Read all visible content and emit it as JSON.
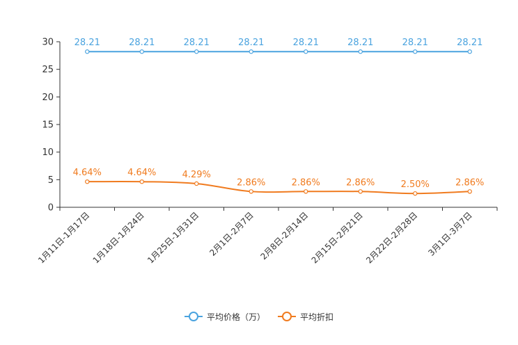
{
  "chart_data": {
    "type": "line",
    "categories": [
      "1月11日-1月17日",
      "1月18日-1月24日",
      "1月25日-1月31日",
      "2月1日-2月7日",
      "2月8日-2月14日",
      "2月15日-2月21日",
      "2月22日-2月28日",
      "3月1日-3月7日"
    ],
    "series": [
      {
        "name": "平均价格（万）",
        "color": "#4aa3df",
        "values": [
          28.21,
          28.21,
          28.21,
          28.21,
          28.21,
          28.21,
          28.21,
          28.21
        ],
        "labels": [
          "28.21",
          "28.21",
          "28.21",
          "28.21",
          "28.21",
          "28.21",
          "28.21",
          "28.21"
        ]
      },
      {
        "name": "平均折扣",
        "color": "#f07b1f",
        "values": [
          4.64,
          4.64,
          4.29,
          2.86,
          2.86,
          2.86,
          2.5,
          2.86
        ],
        "labels": [
          "4.64%",
          "4.64%",
          "4.29%",
          "2.86%",
          "2.86%",
          "2.86%",
          "2.50%",
          "2.86%"
        ]
      }
    ],
    "yticks": [
      "0",
      "5",
      "10",
      "15",
      "20",
      "25",
      "30"
    ],
    "ylim": [
      0,
      30
    ],
    "title": "",
    "xlabel": "",
    "ylabel": "",
    "legend_position": "bottom-center"
  }
}
